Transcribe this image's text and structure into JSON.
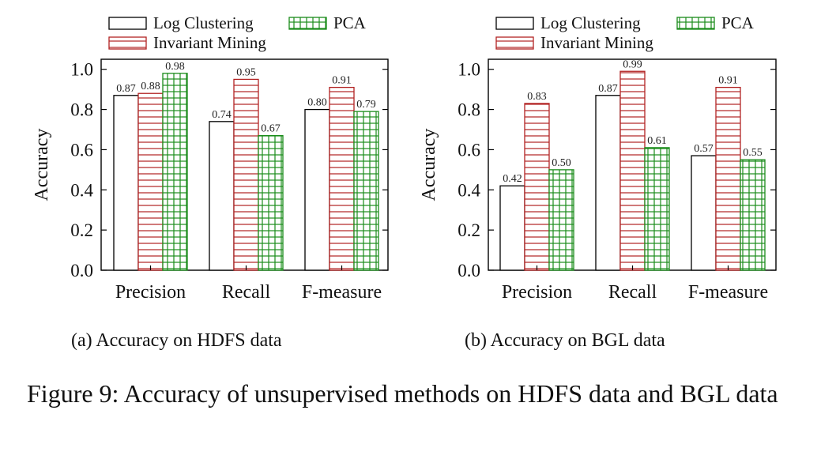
{
  "figure": {
    "caption": "Figure 9: Accuracy of unsupervised methods on HDFS data and BGL data",
    "subcaptions": [
      "(a) Accuracy on HDFS data",
      "(b) Accuracy on BGL data"
    ]
  },
  "chart_data": [
    {
      "type": "bar",
      "title": "",
      "xlabel": "",
      "ylabel": "Accuracy",
      "ylim": [
        0,
        1.05
      ],
      "yticks": [
        "0.0",
        "0.2",
        "0.4",
        "0.6",
        "0.8",
        "1.0"
      ],
      "categories": [
        "Precision",
        "Recall",
        "F-measure"
      ],
      "legend": "top",
      "series": [
        {
          "name": "Log Clustering",
          "values": [
            0.87,
            0.74,
            0.8
          ],
          "labels": [
            "0.87",
            "0.74",
            "0.80"
          ],
          "color": "#000000",
          "pattern": "none"
        },
        {
          "name": "Invariant Mining",
          "values": [
            0.88,
            0.95,
            0.91
          ],
          "labels": [
            "0.88",
            "0.95",
            "0.91"
          ],
          "color": "#b22222",
          "pattern": "horizontal"
        },
        {
          "name": "PCA",
          "values": [
            0.98,
            0.67,
            0.79
          ],
          "labels": [
            "0.98",
            "0.67",
            "0.79"
          ],
          "color": "#1a8c1a",
          "pattern": "grid"
        }
      ]
    },
    {
      "type": "bar",
      "title": "",
      "xlabel": "",
      "ylabel": "Accuracy",
      "ylim": [
        0,
        1.05
      ],
      "yticks": [
        "0.0",
        "0.2",
        "0.4",
        "0.6",
        "0.8",
        "1.0"
      ],
      "categories": [
        "Precision",
        "Recall",
        "F-measure"
      ],
      "legend": "top",
      "series": [
        {
          "name": "Log Clustering",
          "values": [
            0.42,
            0.87,
            0.57
          ],
          "labels": [
            "0.42",
            "0.87",
            "0.57"
          ],
          "color": "#000000",
          "pattern": "none"
        },
        {
          "name": "Invariant Mining",
          "values": [
            0.83,
            0.99,
            0.91
          ],
          "labels": [
            "0.83",
            "0.99",
            "0.91"
          ],
          "color": "#b22222",
          "pattern": "horizontal"
        },
        {
          "name": "PCA",
          "values": [
            0.5,
            0.61,
            0.55
          ],
          "labels": [
            "0.50",
            "0.61",
            "0.55"
          ],
          "color": "#1a8c1a",
          "pattern": "grid"
        }
      ]
    }
  ]
}
